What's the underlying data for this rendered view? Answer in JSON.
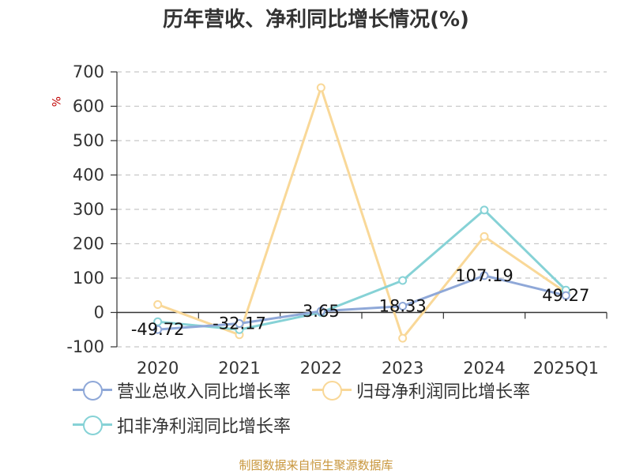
{
  "chart_data": {
    "type": "line",
    "title": "历年营收、净利同比增长情况(%)",
    "ylabel": "%",
    "categories": [
      "2020",
      "2021",
      "2022",
      "2023",
      "2024",
      "2025Q1"
    ],
    "ylim": [
      -100,
      700
    ],
    "yticks": [
      -100,
      0,
      100,
      200,
      300,
      400,
      500,
      600,
      700
    ],
    "grid": true,
    "legend_position": "bottom",
    "series": [
      {
        "name": "营业总收入同比增长率",
        "color": "#8fa8d8",
        "values": [
          -49.72,
          -32.17,
          3.65,
          18.33,
          107.19,
          49.27
        ],
        "labels": [
          "-49.72",
          "-32.17",
          "3.65",
          "18.33",
          "107.19",
          "49.27"
        ]
      },
      {
        "name": "归母净利润同比增长率",
        "color": "#f9d898",
        "values": [
          23,
          -65,
          654,
          -75,
          221,
          58
        ]
      },
      {
        "name": "扣非净利润同比增长率",
        "color": "#86d2d6",
        "values": [
          -27,
          -50,
          0,
          93,
          298,
          65
        ]
      }
    ]
  },
  "source": "制图数据来自恒生聚源数据库"
}
